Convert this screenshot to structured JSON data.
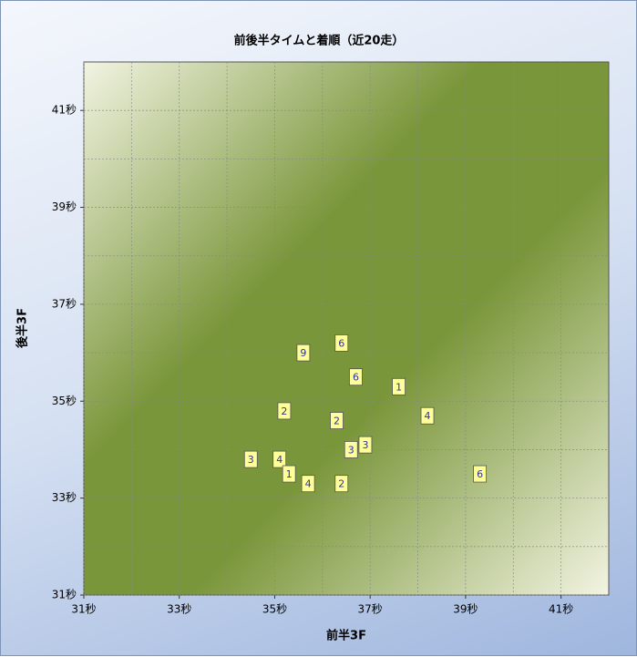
{
  "chart_data": {
    "type": "scatter",
    "title": "前後半タイムと着順（近20走）",
    "x_label": "前半3F",
    "y_label": "後半3F",
    "xlim": [
      31,
      42
    ],
    "ylim": [
      31,
      42
    ],
    "xticks": [
      {
        "value": 31,
        "label": "31秒"
      },
      {
        "value": 33,
        "label": "33秒"
      },
      {
        "value": 35,
        "label": "35秒"
      },
      {
        "value": 37,
        "label": "37秒"
      },
      {
        "value": 39,
        "label": "39秒"
      },
      {
        "value": 41,
        "label": "41秒"
      }
    ],
    "yticks": [
      {
        "value": 31,
        "label": "31秒"
      },
      {
        "value": 33,
        "label": "33秒"
      },
      {
        "value": 35,
        "label": "35秒"
      },
      {
        "value": 37,
        "label": "37秒"
      },
      {
        "value": 39,
        "label": "39秒"
      },
      {
        "value": 41,
        "label": "41秒"
      }
    ],
    "grid": true,
    "color": "#ffff99",
    "x": [
      35.6,
      36.4,
      36.7,
      37.6,
      35.2,
      36.3,
      38.2,
      36.9,
      36.6,
      34.5,
      35.1,
      35.3,
      35.7,
      36.4,
      39.3
    ],
    "values": [
      36.0,
      36.2,
      35.5,
      35.3,
      34.8,
      34.6,
      34.7,
      34.1,
      34.0,
      33.8,
      33.8,
      33.5,
      33.3,
      33.3,
      33.5
    ],
    "labels": [
      "9",
      "6",
      "6",
      "1",
      "2",
      "2",
      "4",
      "3",
      "3",
      "3",
      "4",
      "1",
      "4",
      "2",
      "6"
    ]
  }
}
